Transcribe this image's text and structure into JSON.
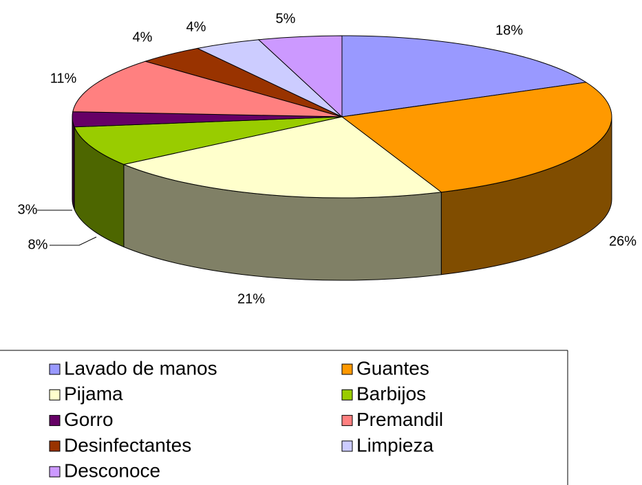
{
  "chart_data": {
    "type": "pie3d",
    "categories": [
      "Lavado de manos",
      "Guantes",
      "Pijama",
      "Barbijos",
      "Gorro",
      "Premandil",
      "Desinfectantes",
      "Limpieza",
      "Desconoce"
    ],
    "values": [
      18,
      26,
      21,
      8,
      3,
      11,
      4,
      4,
      5
    ],
    "value_labels": [
      "18%",
      "26%",
      "21%",
      "8%",
      "3%",
      "11%",
      "4%",
      "4%",
      "5%"
    ],
    "colors": [
      "#9999ff",
      "#ff9900",
      "#ffffcc",
      "#99cc00",
      "#660066",
      "#ff8080",
      "#993300",
      "#ccccff",
      "#cc99ff"
    ],
    "legend": "bottom"
  }
}
